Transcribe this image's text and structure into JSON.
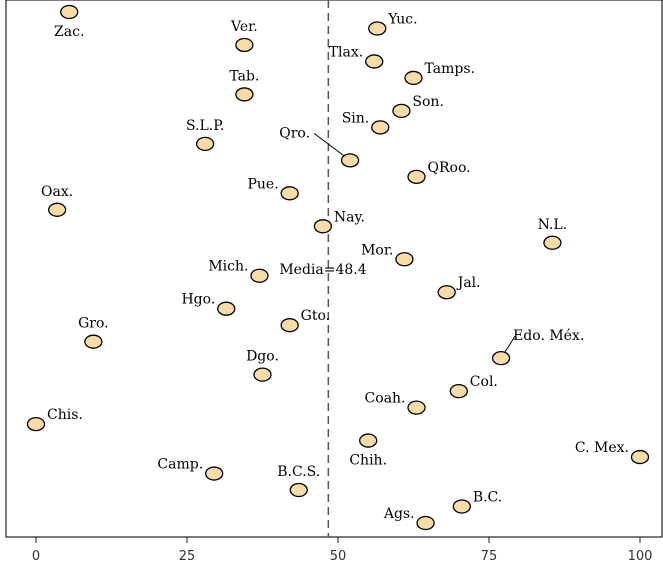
{
  "chart_data": {
    "type": "scatter",
    "title": "",
    "xlabel": "",
    "ylabel": "",
    "xlim": [
      -5,
      104
    ],
    "x_ticks": [
      0,
      25,
      50,
      75,
      100
    ],
    "y_axis_shown": false,
    "grid": false,
    "marker_color": "#f8dca8",
    "marker_edge_color": "#000000",
    "reference_line": {
      "x": 48.4,
      "label": "Media=48.4",
      "style": "dashed"
    },
    "points": [
      {
        "label": "Zac.",
        "x": 5.5,
        "y": 1,
        "label_side": "below"
      },
      {
        "label": "Yuc.",
        "x": 56.5,
        "y": 2,
        "label_side": "right"
      },
      {
        "label": "Ver.",
        "x": 34.5,
        "y": 3,
        "label_side": "above"
      },
      {
        "label": "Tlax.",
        "x": 56,
        "y": 4,
        "label_side": "left"
      },
      {
        "label": "Tamps.",
        "x": 62.5,
        "y": 5,
        "label_side": "right"
      },
      {
        "label": "Tab.",
        "x": 34.5,
        "y": 6,
        "label_side": "above"
      },
      {
        "label": "Son.",
        "x": 60.5,
        "y": 7,
        "label_side": "right"
      },
      {
        "label": "Sin.",
        "x": 57,
        "y": 8,
        "label_side": "left"
      },
      {
        "label": "S.L.P.",
        "x": 28,
        "y": 9,
        "label_side": "above"
      },
      {
        "label": "Qro.",
        "x": 52,
        "y": 10,
        "label_side": "left"
      },
      {
        "label": "QRoo.",
        "x": 63,
        "y": 11,
        "label_side": "right"
      },
      {
        "label": "Pue.",
        "x": 42,
        "y": 12,
        "label_side": "left"
      },
      {
        "label": "Oax.",
        "x": 3.5,
        "y": 13,
        "label_side": "above"
      },
      {
        "label": "Nay.",
        "x": 47.5,
        "y": 14,
        "label_side": "right"
      },
      {
        "label": "N.L.",
        "x": 85.5,
        "y": 15,
        "label_side": "above"
      },
      {
        "label": "Mor.",
        "x": 61,
        "y": 16,
        "label_side": "left"
      },
      {
        "label": "Mich.",
        "x": 37,
        "y": 17,
        "label_side": "left"
      },
      {
        "label": "Jal.",
        "x": 68,
        "y": 18,
        "label_side": "right"
      },
      {
        "label": "Hgo.",
        "x": 31.5,
        "y": 19,
        "label_side": "left"
      },
      {
        "label": "Gto.",
        "x": 42,
        "y": 20,
        "label_side": "right"
      },
      {
        "label": "Gro.",
        "x": 9.5,
        "y": 21,
        "label_side": "above"
      },
      {
        "label": "Edo. Méx.",
        "x": 77,
        "y": 22,
        "label_side": "right"
      },
      {
        "label": "Dgo.",
        "x": 37.5,
        "y": 23,
        "label_side": "above"
      },
      {
        "label": "Col.",
        "x": 70,
        "y": 24,
        "label_side": "right"
      },
      {
        "label": "Coah.",
        "x": 63,
        "y": 25,
        "label_side": "left"
      },
      {
        "label": "Chis.",
        "x": 0,
        "y": 26,
        "label_side": "right"
      },
      {
        "label": "Chih.",
        "x": 55,
        "y": 27,
        "label_side": "below"
      },
      {
        "label": "C. Mex.",
        "x": 100,
        "y": 28,
        "label_side": "left"
      },
      {
        "label": "Camp.",
        "x": 29.5,
        "y": 29,
        "label_side": "left"
      },
      {
        "label": "B.C.S.",
        "x": 43.5,
        "y": 30,
        "label_side": "above"
      },
      {
        "label": "B.C.",
        "x": 70.5,
        "y": 31,
        "label_side": "right"
      },
      {
        "label": "Ags.",
        "x": 64.5,
        "y": 32,
        "label_side": "left"
      }
    ]
  }
}
